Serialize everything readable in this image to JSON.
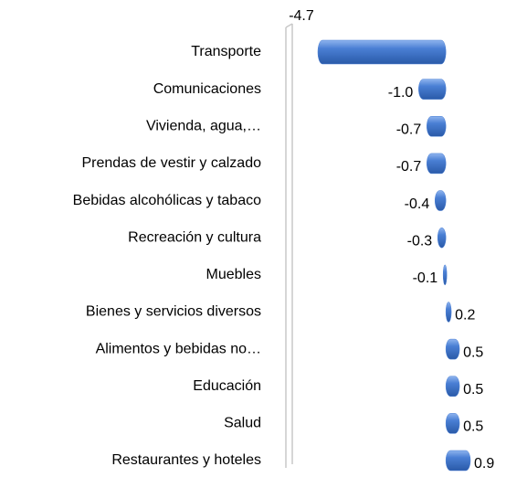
{
  "chart_data": {
    "type": "bar",
    "orientation": "horizontal",
    "categories": [
      "Transporte",
      "Comunicaciones",
      "Vivienda, agua,…",
      "Prendas de vestir y calzado",
      "Bebidas alcohólicas y tabaco",
      "Recreación y cultura",
      "Muebles",
      "Bienes y servicios diversos",
      "Alimentos y bebidas no…",
      "Educación",
      "Salud",
      "Restaurantes y hoteles"
    ],
    "values": [
      -4.7,
      -1.0,
      -0.7,
      -0.7,
      -0.4,
      -0.3,
      -0.1,
      0.2,
      0.5,
      0.5,
      0.5,
      0.9
    ],
    "value_labels": [
      "-4.7",
      "-1.0",
      "-0.7",
      "-0.7",
      "-0.4",
      "-0.3",
      "-0.1",
      "0.2",
      "0.5",
      "0.5",
      "0.5",
      "0.9"
    ],
    "color": "#4a7fd4"
  }
}
